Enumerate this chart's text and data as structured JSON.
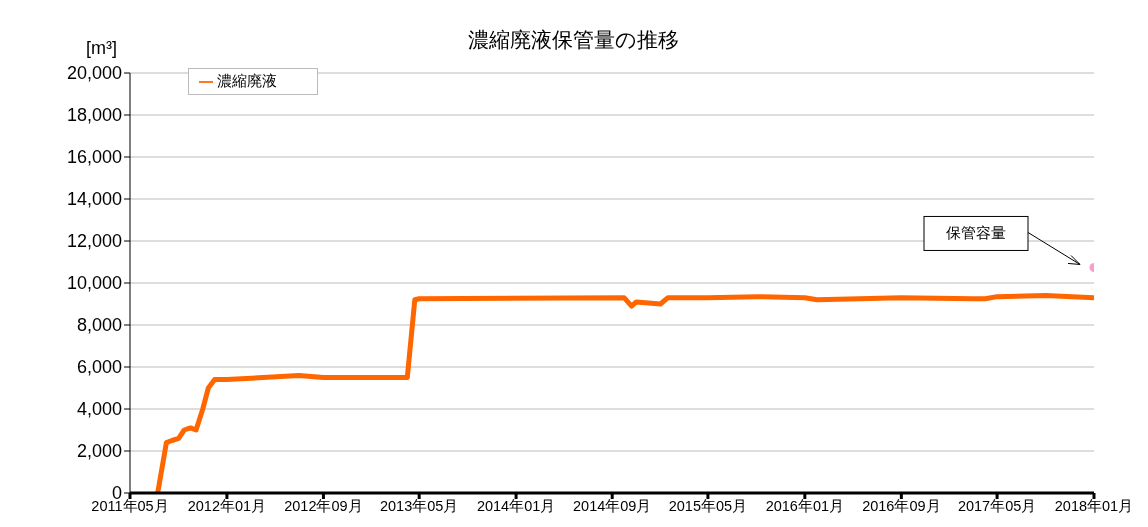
{
  "chart_data": {
    "type": "line",
    "title": "濃縮廃液保管量の推移",
    "ylabel": "[m³]",
    "xlim": [
      "2011-05",
      "2018-01"
    ],
    "xticks": [
      {
        "value": "2011-05",
        "label": "2011年05月"
      },
      {
        "value": "2012-01",
        "label": "2012年01月"
      },
      {
        "value": "2012-09",
        "label": "2012年09月"
      },
      {
        "value": "2013-05",
        "label": "2013年05月"
      },
      {
        "value": "2014-01",
        "label": "2014年01月"
      },
      {
        "value": "2014-09",
        "label": "2014年09月"
      },
      {
        "value": "2015-05",
        "label": "2015年05月"
      },
      {
        "value": "2016-01",
        "label": "2016年01月"
      },
      {
        "value": "2016-09",
        "label": "2016年09月"
      },
      {
        "value": "2017-05",
        "label": "2017年05月"
      },
      {
        "value": "2018-01",
        "label": "2018年01月"
      }
    ],
    "ylim": [
      0,
      20000
    ],
    "yticks": [
      {
        "value": 0,
        "label": "0"
      },
      {
        "value": 2000,
        "label": "2,000"
      },
      {
        "value": 4000,
        "label": "4,000"
      },
      {
        "value": 6000,
        "label": "6,000"
      },
      {
        "value": 8000,
        "label": "8,000"
      },
      {
        "value": 10000,
        "label": "10,000"
      },
      {
        "value": 12000,
        "label": "12,000"
      },
      {
        "value": 14000,
        "label": "14,000"
      },
      {
        "value": 16000,
        "label": "16,000"
      },
      {
        "value": 18000,
        "label": "18,000"
      },
      {
        "value": 20000,
        "label": "20,000"
      }
    ],
    "grid": "y",
    "legend": "top left",
    "line_style": "solid",
    "series": [
      {
        "name": "濃縮廃液",
        "color": "#ff6600",
        "x": [
          "2011-07-10",
          "2011-08-01",
          "2011-08-15",
          "2011-09-01",
          "2011-09-15",
          "2011-10-01",
          "2011-10-15",
          "2011-11-01",
          "2011-11-15",
          "2011-12-01",
          "2012-01-01",
          "2012-07-01",
          "2012-09-01",
          "2013-03-01",
          "2013-04-01",
          "2013-04-20",
          "2013-05-01",
          "2014-10-01",
          "2014-10-20",
          "2014-11-01",
          "2015-01-01",
          "2015-01-20",
          "2015-05-01",
          "2015-09-01",
          "2016-01-01",
          "2016-02-01",
          "2016-09-01",
          "2017-03-01",
          "2017-04-01",
          "2017-05-01",
          "2017-09-01",
          "2018-01-01"
        ],
        "values": [
          0,
          2400,
          2500,
          2600,
          3000,
          3100,
          3000,
          4000,
          5000,
          5400,
          5400,
          5600,
          5500,
          5500,
          5500,
          9200,
          9250,
          9300,
          8900,
          9100,
          9000,
          9300,
          9300,
          9350,
          9300,
          9200,
          9300,
          9250,
          9250,
          9350,
          9400,
          9300
        ]
      },
      {
        "type": "scatter",
        "color": "#f5a0c8",
        "x": [
          "2018-01-01"
        ],
        "values": [
          10740
        ]
      }
    ],
    "annotations": [
      "保管容量"
    ]
  }
}
